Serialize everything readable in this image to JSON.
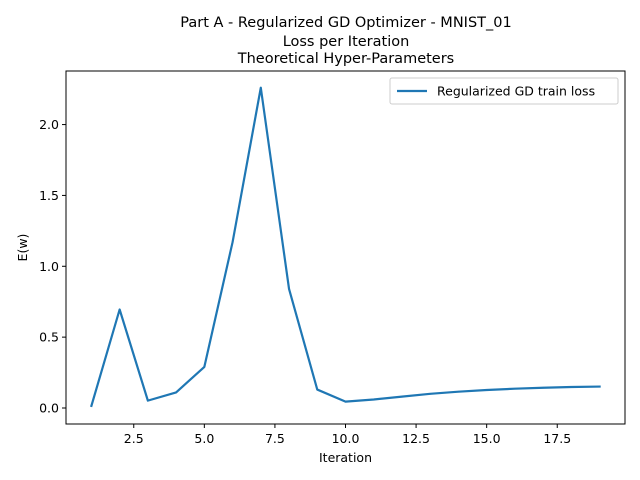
{
  "chart_data": {
    "type": "line",
    "title_lines": [
      "Part A - Regularized GD Optimizer - MNIST_01",
      "Loss per Iteration",
      "Theoretical Hyper-Parameters"
    ],
    "xlabel": "Iteration",
    "ylabel": "E(w)",
    "xlim": [
      0.1,
      19.9
    ],
    "ylim": [
      -0.113,
      2.378
    ],
    "xticks": [
      2.5,
      5.0,
      7.5,
      10.0,
      12.5,
      15.0,
      17.5
    ],
    "xtick_labels": [
      "2.5",
      "5.0",
      "7.5",
      "10.0",
      "12.5",
      "15.0",
      "17.5"
    ],
    "yticks": [
      0.0,
      0.5,
      1.0,
      1.5,
      2.0
    ],
    "ytick_labels": [
      "0.0",
      "0.5",
      "1.0",
      "1.5",
      "2.0"
    ],
    "grid": false,
    "legend_position": "top-right",
    "series": [
      {
        "name": "Regularized GD train loss",
        "color": "#1f77b4",
        "x": [
          1,
          2,
          3,
          4,
          5,
          6,
          7,
          8,
          9,
          10,
          11,
          12,
          13,
          14,
          15,
          16,
          17,
          18,
          19
        ],
        "y": [
          0.015,
          0.695,
          0.052,
          0.11,
          0.29,
          1.17,
          2.26,
          0.84,
          0.13,
          0.045,
          0.06,
          0.08,
          0.1,
          0.115,
          0.127,
          0.136,
          0.143,
          0.148,
          0.151
        ]
      }
    ]
  }
}
